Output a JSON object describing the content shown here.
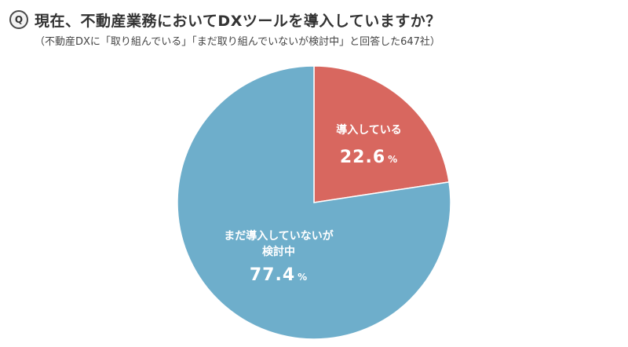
{
  "header": {
    "badge": "Q",
    "question": "現在、不動産業務においてDXツールを導入していますか？",
    "note": "（不動産DXに「取り組んでいる」「まだ取り組んでいないが検討中」と回答した647社）"
  },
  "chart_data": {
    "type": "pie",
    "title": "",
    "slices": [
      {
        "label_lines": [
          "導入している"
        ],
        "value": 22.6,
        "value_text": "22.6",
        "unit": "%",
        "color": "#d8675f"
      },
      {
        "label_lines": [
          "まだ導入していないが",
          "検討中"
        ],
        "value": 77.4,
        "value_text": "77.4",
        "unit": "%",
        "color": "#6eaecb"
      }
    ],
    "start": "12 o'clock",
    "direction": "clockwise"
  }
}
